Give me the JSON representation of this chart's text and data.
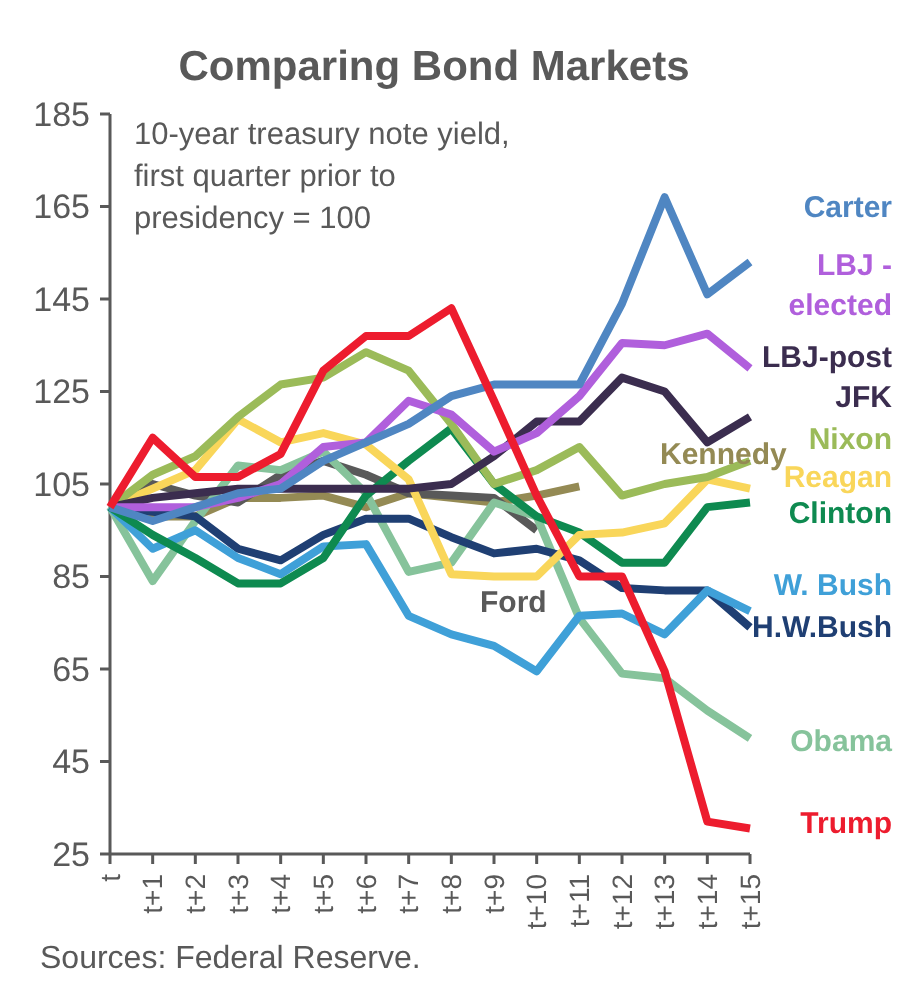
{
  "chart_data": {
    "type": "line",
    "title": "Comparing Bond Markets",
    "annotations": [
      "10-year treasury note yield, first quarter prior to presidency = 100",
      "Sources: Federal Reserve."
    ],
    "categories": [
      "t",
      "t+1",
      "t+2",
      "t+3",
      "t+4",
      "t+5",
      "t+6",
      "t+7",
      "t+8",
      "t+9",
      "t+10",
      "t+11",
      "t+12",
      "t+13",
      "t+14",
      "t+15"
    ],
    "ylim": [
      25,
      185
    ],
    "yticks": [
      25,
      45,
      65,
      85,
      105,
      125,
      145,
      165,
      185
    ],
    "marker": "none",
    "line_style": "solid",
    "series": [
      {
        "name": "Kennedy",
        "color": "#948a54",
        "values": [
          100,
          98,
          98,
          102,
          102,
          102.5,
          100,
          103,
          102,
          101,
          102.5,
          104.5,
          null,
          null,
          null,
          null
        ]
      },
      {
        "name": "Ford",
        "color": "#595959",
        "values": [
          100,
          105,
          102.5,
          101,
          107,
          110,
          107,
          103,
          102.5,
          102,
          95,
          null,
          null,
          null,
          null,
          null
        ]
      },
      {
        "name": "Obama",
        "color": "#86c39b",
        "values": [
          100,
          84,
          97,
          109,
          108,
          112,
          103,
          86,
          88,
          101,
          98,
          76,
          64,
          63,
          56,
          50
        ]
      },
      {
        "name": "H.W.Bush",
        "color": "#1f3f73",
        "values": [
          100,
          99,
          98,
          91,
          88.5,
          94,
          97.5,
          97.5,
          93.5,
          90,
          91,
          88.5,
          82.5,
          82,
          82,
          74
        ]
      },
      {
        "name": "W. Bush",
        "color": "#3fa0d8",
        "values": [
          100,
          91,
          95,
          89,
          85.5,
          91.5,
          92,
          76.5,
          72.5,
          70,
          64.5,
          76.5,
          77,
          72.5,
          82,
          77.5
        ]
      },
      {
        "name": "Clinton",
        "color": "#0e8a50",
        "values": [
          100,
          94,
          89,
          83.5,
          83.5,
          89,
          102.5,
          110,
          117,
          105,
          98,
          94.5,
          88,
          88,
          100,
          101
        ]
      },
      {
        "name": "Reagan",
        "color": "#f9d65a",
        "values": [
          100,
          104,
          108,
          119,
          114,
          116,
          113.5,
          106,
          85.5,
          85,
          85,
          94,
          94.5,
          96.5,
          106,
          104
        ]
      },
      {
        "name": "Nixon",
        "color": "#9bbb59",
        "values": [
          100,
          107,
          111,
          119.5,
          126.5,
          128,
          133.5,
          129.5,
          118,
          105,
          108,
          113,
          102.5,
          105,
          106.5,
          110
        ]
      },
      {
        "name": "LBJ-post JFK",
        "color": "#3b2d4f",
        "values": [
          100,
          102,
          103,
          104,
          104,
          104,
          104,
          104,
          105,
          111,
          118.5,
          118.5,
          128,
          125,
          114,
          119.5
        ]
      },
      {
        "name": "LBJ - elected",
        "color": "#b05fdc",
        "values": [
          100,
          100,
          100,
          102,
          105,
          113,
          114,
          123,
          120,
          112,
          116,
          124,
          135.5,
          135,
          137.5,
          130
        ]
      },
      {
        "name": "Carter",
        "color": "#4f86c2",
        "values": [
          100,
          97,
          100,
          103,
          104,
          110,
          114,
          118,
          124,
          126.5,
          126.5,
          126.5,
          144,
          167,
          146,
          153
        ]
      },
      {
        "name": "Trump",
        "color": "#ed1c2e",
        "values": [
          100,
          115,
          106.5,
          106.5,
          111.5,
          129.5,
          137,
          137,
          143,
          123,
          102.5,
          85,
          85,
          64.5,
          32,
          30.5
        ]
      }
    ]
  }
}
